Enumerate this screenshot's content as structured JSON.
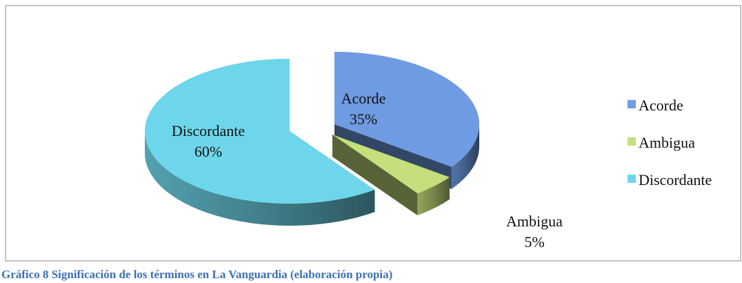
{
  "chart_data": {
    "type": "pie3d",
    "caption": "Gráfico 8 Significación de los términos en La Vanguardia (elaboración propia)",
    "categories": [
      "Acorde",
      "Ambigua",
      "Discordante"
    ],
    "values": [
      35,
      5,
      60
    ],
    "value_labels": [
      "35%",
      "5%",
      "60%"
    ],
    "colors": [
      "#6f9be2",
      "#c4df7c",
      "#6ed6ea"
    ],
    "legend": "right"
  }
}
